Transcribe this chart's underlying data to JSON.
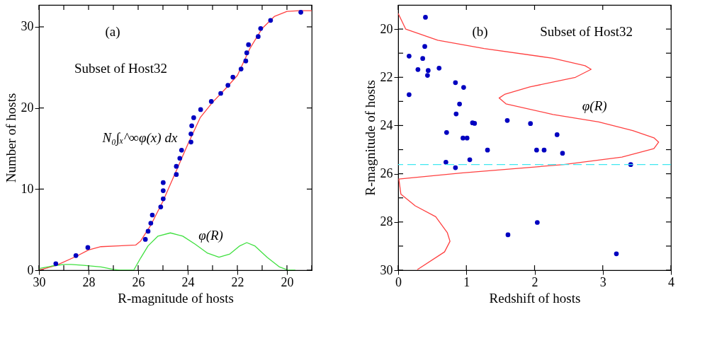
{
  "chart_data": [
    {
      "type": "line",
      "xlabel": "R-magnitude of hosts",
      "ylabel": "Number of hosts",
      "xlim": [
        30,
        19
      ],
      "ylim": [
        0,
        32.7
      ],
      "grid": false,
      "xticks": [
        30,
        {
          "value": 29,
          "label": null
        },
        28,
        {
          "value": 27,
          "label": null
        },
        26,
        {
          "value": 25,
          "label": null
        },
        24,
        {
          "value": 23,
          "label": null
        },
        22,
        {
          "value": 21,
          "label": null
        },
        20,
        {
          "value": 19,
          "label": null
        }
      ],
      "yticks": [
        0,
        10,
        20,
        30
      ],
      "annotations": [
        "(a)",
        "Subset of Host32",
        "N₀∫ₓ^∞φ(x) dx",
        "φ(R)"
      ],
      "series": [
        {
          "color": "#ff4040",
          "line_style": "solid",
          "marker": "none",
          "x": [
            30,
            29.3,
            28.5,
            28.0,
            27.5,
            26.8,
            26.1,
            25.9,
            25.5,
            25.0,
            24.5,
            24.0,
            23.5,
            23.0,
            22.5,
            22.0,
            21.5,
            21.0,
            20.5,
            20.0,
            19.5,
            19.0
          ],
          "values": [
            0,
            0.6,
            1.7,
            2.5,
            2.9,
            3.0,
            3.1,
            3.6,
            5.5,
            8.5,
            12,
            15.5,
            18.8,
            20.7,
            22.3,
            24,
            27.3,
            29.8,
            31.3,
            31.9,
            32,
            32
          ]
        },
        {
          "color": "#40e040",
          "line_style": "solid",
          "marker": "none",
          "x": [
            30,
            29.5,
            29.0,
            28.7,
            28.2,
            27.5,
            27.0,
            26.74,
            26.18,
            25.9,
            25.6,
            25.2,
            24.7,
            24.2,
            23.7,
            23.2,
            22.74,
            22.3,
            21.9,
            21.62,
            21.3,
            20.8,
            20.3,
            19.94,
            19.66
          ],
          "values": [
            0.2,
            0.5,
            0.7,
            0.7,
            0.6,
            0.4,
            0.1,
            0,
            0,
            1.5,
            3,
            4.2,
            4.6,
            4.2,
            3.2,
            2.1,
            1.6,
            2.0,
            3.0,
            3.4,
            3.0,
            1.6,
            0.4,
            0,
            0
          ]
        },
        {
          "type": "scatter",
          "color": "#0000c0",
          "marker": "circle",
          "x": [
            29.32,
            28.51,
            28.03,
            25.71,
            25.6,
            25.49,
            25.43,
            25.09,
            24.99,
            24.99,
            24.99,
            24.46,
            24.46,
            24.32,
            24.25,
            23.87,
            23.87,
            23.84,
            23.76,
            23.48,
            23.05,
            22.67,
            22.38,
            22.18,
            21.85,
            21.66,
            21.62,
            21.55,
            21.16,
            21.06,
            20.66,
            19.44
          ],
          "values": [
            0.8,
            1.8,
            2.8,
            3.8,
            4.8,
            5.8,
            6.8,
            7.8,
            8.8,
            9.8,
            10.8,
            11.8,
            12.8,
            13.8,
            14.8,
            15.8,
            16.8,
            17.8,
            18.8,
            19.8,
            20.8,
            21.8,
            22.8,
            23.8,
            24.8,
            25.8,
            26.8,
            27.8,
            28.8,
            29.8,
            30.8,
            31.8
          ]
        }
      ]
    },
    {
      "type": "scatter",
      "xlabel": "Redshift of hosts",
      "ylabel": "R-magnitude of hosts",
      "xlim": [
        0,
        4
      ],
      "ylim": [
        30,
        19
      ],
      "grid": false,
      "xticks": [
        0,
        1,
        2,
        3,
        4
      ],
      "yticks": [
        20,
        {
          "value": 21,
          "label": null
        },
        22,
        {
          "value": 23,
          "label": null
        },
        24,
        {
          "value": 25,
          "label": null
        },
        26,
        {
          "value": 27,
          "label": null
        },
        28,
        {
          "value": 29,
          "label": null
        },
        30
      ],
      "annotations": [
        "(b)",
        "Subset of Host32",
        "φ(R)"
      ],
      "ref_lines": [
        {
          "axis": "y",
          "value": 25.62,
          "color": "#40e8f0",
          "line_style": "dashed"
        }
      ],
      "series": [
        {
          "type": "line",
          "color": "#ff4040",
          "line_style": "solid",
          "marker": "none",
          "x": [
            0,
            0.11,
            0.58,
            1.26,
            2.27,
            2.74,
            2.83,
            2.6,
            1.93,
            1.56,
            1.48,
            1.58,
            2.27,
            2.94,
            3.44,
            3.75,
            3.82,
            3.75,
            3.28,
            2.43,
            0.92,
            0.01,
            0.04,
            0.25,
            0.55,
            0.72,
            0.76,
            0.68,
            0.28
          ],
          "values": [
            19.35,
            20.0,
            20.46,
            20.81,
            21.21,
            21.52,
            21.67,
            22.0,
            22.4,
            22.71,
            22.86,
            23.1,
            23.54,
            23.85,
            24.21,
            24.51,
            24.69,
            24.96,
            25.31,
            25.62,
            25.97,
            26.22,
            26.85,
            27.33,
            27.78,
            28.44,
            28.8,
            29.24,
            29.98
          ]
        },
        {
          "color": "#0000c0",
          "marker": "circle",
          "x": [
            0.4,
            0.39,
            0.16,
            0.36,
            0.29,
            0.44,
            0.6,
            0.43,
            0.16,
            0.84,
            0.96,
            0.9,
            0.85,
            1.09,
            1.12,
            1.6,
            1.94,
            2.33,
            0.71,
            0.95,
            1.01,
            1.31,
            2.03,
            2.14,
            2.41,
            0.7,
            1.05,
            0.84,
            3.41,
            1.61,
            2.04,
            3.2
          ],
          "values": [
            19.51,
            20.72,
            21.12,
            21.22,
            21.68,
            21.72,
            21.62,
            21.92,
            22.72,
            22.22,
            22.42,
            23.11,
            23.52,
            23.89,
            23.91,
            23.79,
            23.92,
            24.38,
            24.29,
            24.52,
            24.52,
            25.02,
            25.02,
            25.02,
            25.15,
            25.52,
            25.42,
            25.75,
            25.62,
            28.53,
            28.02,
            29.32
          ]
        }
      ]
    }
  ]
}
